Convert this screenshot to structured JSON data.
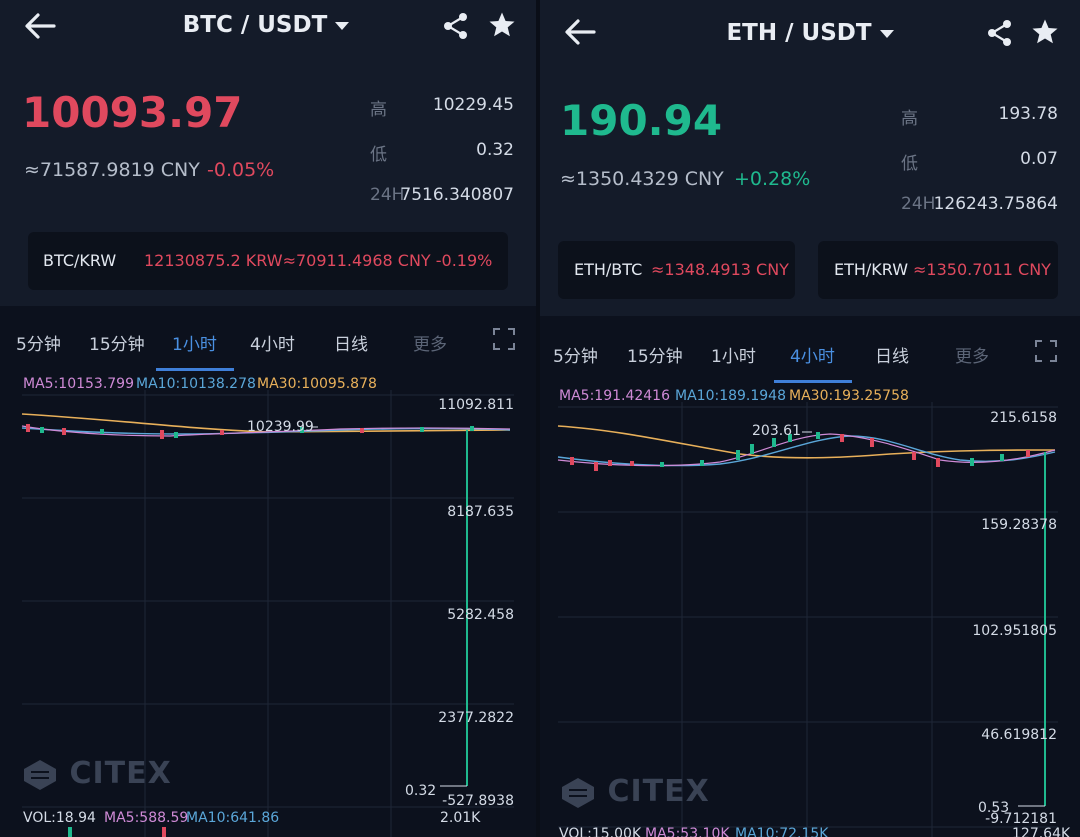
{
  "left": {
    "pair": "BTC / USDT",
    "price": "10093.97",
    "cny": "≈71587.9819 CNY",
    "change": "-0.05%",
    "stats": [
      {
        "label": "高",
        "value": "10229.45"
      },
      {
        "label": "低",
        "value": "0.32"
      },
      {
        "label": "24H",
        "value": "7516.340807"
      }
    ],
    "cards": [
      {
        "label": "BTC/KRW",
        "value": "12130875.2 KRW≈70911.4968 CNY  -0.19%"
      }
    ],
    "tabs": [
      "5分钟",
      "15分钟",
      "1小时",
      "4小时",
      "日线",
      "更多"
    ],
    "active_tab": "1小时",
    "ma": {
      "ma5": "MA5:10153.799",
      "ma10": "MA10:10138.278",
      "ma30": "MA30:10095.878"
    },
    "axis": [
      "11092.811",
      "8187.635",
      "5282.458",
      "2377.2822",
      "-527.8938"
    ],
    "high_marker": "10239.99",
    "low_marker": "0.32",
    "vol": {
      "vol": "VOL:18.94",
      "ma5": "MA5:588.59",
      "ma10": "MA10:641.86",
      "max": "2.01K"
    },
    "logo": "CITEX"
  },
  "right": {
    "pair": "ETH / USDT",
    "price": "190.94",
    "cny": "≈1350.4329 CNY",
    "change": "+0.28%",
    "stats": [
      {
        "label": "高",
        "value": "193.78"
      },
      {
        "label": "低",
        "value": "0.07"
      },
      {
        "label": "24H",
        "value": "126243.75864"
      }
    ],
    "cards": [
      {
        "label": "ETH/BTC",
        "value": "≈1348.4913 CNY"
      },
      {
        "label": "ETH/KRW",
        "value": "≈1350.7011 CNY"
      }
    ],
    "tabs": [
      "5分钟",
      "15分钟",
      "1小时",
      "4小时",
      "日线",
      "更多"
    ],
    "active_tab": "4小时",
    "ma": {
      "ma5": "MA5:191.42416",
      "ma10": "MA10:189.1948",
      "ma30": "MA30:193.25758"
    },
    "axis": [
      "215.6158",
      "159.28378",
      "102.951805",
      "46.619812",
      "-9.712181"
    ],
    "high_marker": "203.61",
    "low_marker": "0.53",
    "vol": {
      "vol": "VOL:15.00K",
      "ma5": "MA5:53.10K",
      "ma10": "MA10:72.15K",
      "max": "127.64K"
    },
    "logo": "CITEX"
  },
  "colors": {
    "up": "#1fb98e",
    "down": "#e0495e",
    "accent": "#3f7fd8",
    "ma5": "#cf8ad6",
    "ma10": "#5aa6d8",
    "ma30": "#e8b05a"
  },
  "icons": [
    "back-arrow-icon",
    "caret-down-icon",
    "share-icon",
    "star-icon",
    "fullscreen-icon",
    "citex-logo-icon"
  ]
}
